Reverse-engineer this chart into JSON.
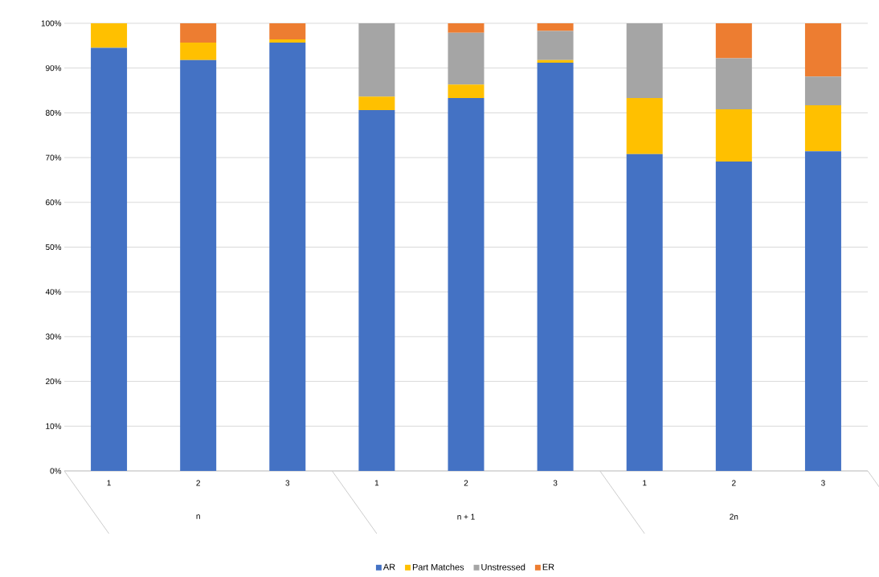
{
  "chart_data": {
    "type": "bar",
    "stacked": true,
    "categories": [
      "1",
      "2",
      "3",
      "1",
      "2",
      "3",
      "1",
      "2",
      "3"
    ],
    "annotations": [
      "n",
      "n + 1",
      "2n"
    ],
    "series": [
      {
        "name": "AR",
        "color": "#4472c4",
        "values": [
          94.5,
          91.8,
          95.7,
          80.6,
          83.3,
          91.2,
          70.8,
          69.1,
          71.4
        ]
      },
      {
        "name": "Part Matches",
        "color": "#ffc000",
        "values": [
          5.5,
          3.9,
          0.7,
          3.0,
          3.0,
          0.6,
          12.5,
          11.7,
          10.3
        ]
      },
      {
        "name": "Unstressed",
        "color": "#a5a5a5",
        "values": [
          0,
          0,
          0,
          16.4,
          11.6,
          6.5,
          16.7,
          11.4,
          6.4
        ]
      },
      {
        "name": "ER",
        "color": "#ed7d31",
        "values": [
          0,
          4.3,
          3.6,
          0,
          2.1,
          1.7,
          0,
          7.8,
          11.9
        ]
      }
    ],
    "ylim": [
      0,
      100
    ],
    "yticks": [
      {
        "value": 0,
        "label": "0%"
      },
      {
        "value": 10,
        "label": "10%"
      },
      {
        "value": 20,
        "label": "20%"
      },
      {
        "value": 30,
        "label": "30%"
      },
      {
        "value": 40,
        "label": "40%"
      },
      {
        "value": 50,
        "label": "50%"
      },
      {
        "value": 60,
        "label": "60%"
      },
      {
        "value": 70,
        "label": "70%"
      },
      {
        "value": 80,
        "label": "80%"
      },
      {
        "value": 90,
        "label": "90%"
      },
      {
        "value": 100,
        "label": "100%"
      }
    ],
    "grid": "y",
    "legend": "bottom"
  }
}
